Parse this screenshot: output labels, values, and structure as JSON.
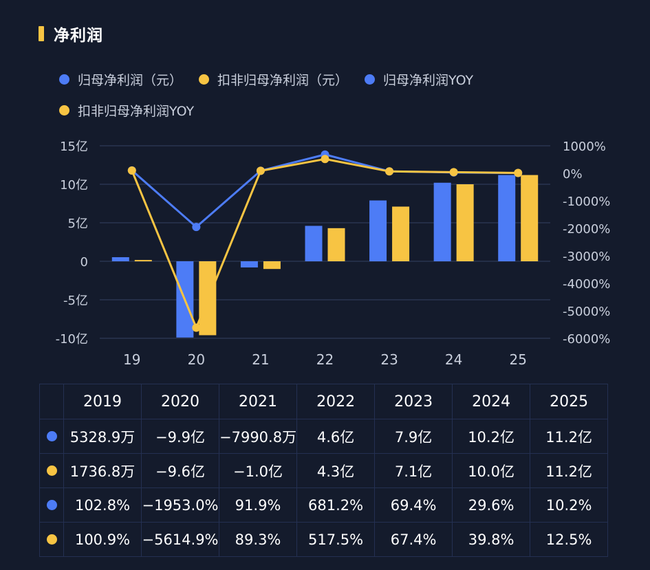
{
  "title": "净利润",
  "colors": {
    "blue": "#4d7cf6",
    "yellow": "#f7c443",
    "accent": "#f7c443",
    "grid": "#2a3450"
  },
  "legend": [
    {
      "label": "归母净利润（元）",
      "color": "#4d7cf6"
    },
    {
      "label": "扣非归母净利润（元）",
      "color": "#f7c443"
    },
    {
      "label": "归母净利润YOY",
      "color": "#4d7cf6"
    },
    {
      "label": "扣非归母净利润YOY",
      "color": "#f7c443"
    }
  ],
  "chart_data": {
    "type": "bar",
    "categories": [
      "19",
      "20",
      "21",
      "22",
      "23",
      "24",
      "25"
    ],
    "left_ticks": [
      "15亿",
      "10亿",
      "5亿",
      "0",
      "-5亿",
      "-10亿"
    ],
    "right_ticks": [
      "1000%",
      "0%",
      "-1000%",
      "-2000%",
      "-3000%",
      "-4000%",
      "-5000%",
      "-6000%"
    ],
    "ylim_left": [
      -10,
      15
    ],
    "ylim_right": [
      -6000,
      1000
    ],
    "bar_series": [
      {
        "name": "归母净利润（元）",
        "unit": "亿",
        "values": [
          0.53,
          -9.9,
          -0.8,
          4.6,
          7.9,
          10.2,
          11.2
        ],
        "color": "#4d7cf6"
      },
      {
        "name": "扣非归母净利润（元）",
        "unit": "亿",
        "values": [
          0.17,
          -9.6,
          -1.0,
          4.3,
          7.1,
          10.0,
          11.2
        ],
        "color": "#f7c443"
      }
    ],
    "line_series": [
      {
        "name": "归母净利润YOY",
        "unit": "%",
        "values": [
          102.8,
          -1953.0,
          91.9,
          681.2,
          69.4,
          29.6,
          10.2
        ],
        "color": "#4d7cf6"
      },
      {
        "name": "扣非归母净利润YOY",
        "unit": "%",
        "values": [
          100.9,
          -5614.9,
          89.3,
          517.5,
          67.4,
          39.8,
          12.5
        ],
        "color": "#f7c443"
      }
    ]
  },
  "table": {
    "headers": [
      "2019",
      "2020",
      "2021",
      "2022",
      "2023",
      "2024",
      "2025"
    ],
    "rows": [
      {
        "color": "#4d7cf6",
        "cells": [
          "5328.9万",
          "−9.9亿",
          "−7990.8万",
          "4.6亿",
          "7.9亿",
          "10.2亿",
          "11.2亿"
        ]
      },
      {
        "color": "#f7c443",
        "cells": [
          "1736.8万",
          "−9.6亿",
          "−1.0亿",
          "4.3亿",
          "7.1亿",
          "10.0亿",
          "11.2亿"
        ]
      },
      {
        "color": "#4d7cf6",
        "cells": [
          "102.8%",
          "−1953.0%",
          "91.9%",
          "681.2%",
          "69.4%",
          "29.6%",
          "10.2%"
        ]
      },
      {
        "color": "#f7c443",
        "cells": [
          "100.9%",
          "−5614.9%",
          "89.3%",
          "517.5%",
          "67.4%",
          "39.8%",
          "12.5%"
        ]
      }
    ]
  }
}
